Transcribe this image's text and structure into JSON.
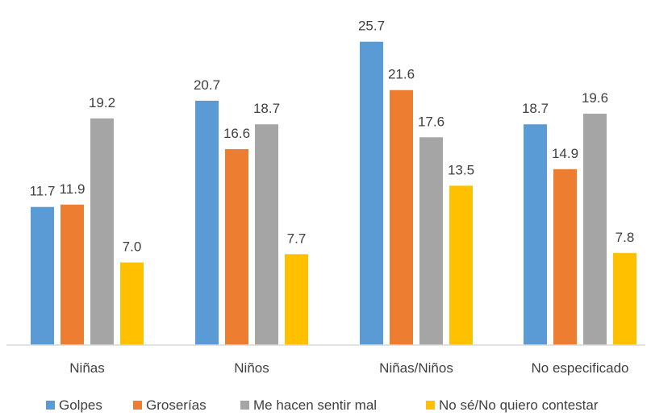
{
  "chart_data": {
    "type": "bar",
    "categories": [
      "Niñas",
      "Niños",
      "Niñas/Niños",
      "No especificado"
    ],
    "series": [
      {
        "name": "Golpes",
        "color": "#5B9BD5",
        "values": [
          11.7,
          20.7,
          25.7,
          18.7
        ]
      },
      {
        "name": "Groserías",
        "color": "#ED7D31",
        "values": [
          11.9,
          16.6,
          21.6,
          14.9
        ]
      },
      {
        "name": "Me hacen sentir mal",
        "color": "#A5A5A5",
        "values": [
          19.2,
          18.7,
          17.6,
          19.6
        ]
      },
      {
        "name": "No sé/No quiero contestar",
        "color": "#FFC000",
        "values": [
          7.0,
          7.7,
          13.5,
          7.8
        ]
      }
    ],
    "ylim": [
      0,
      26.5
    ],
    "legend_position": "bottom",
    "grid": false,
    "title": "",
    "xlabel": "",
    "ylabel": ""
  }
}
